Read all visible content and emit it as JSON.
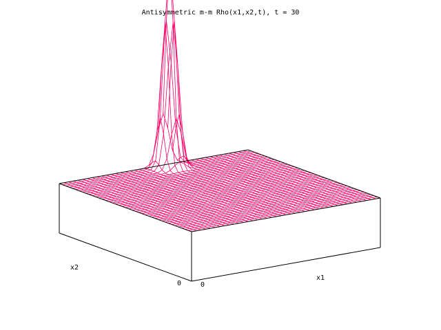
{
  "chart_data": {
    "type": "surface",
    "title": "Antisymmetric m-m Rho(x1,x2,t), t = 30",
    "xlabel": "x1",
    "ylabel": "x2",
    "x_origin_label": "0",
    "y_origin_label": "0",
    "grid_n": 40,
    "surface": {
      "kind": "single peak on flat plane",
      "baseline": 0,
      "peak_value": 1,
      "peak_location": {
        "x1": 0.55,
        "x2": 0.95
      },
      "peak_width": 0.03
    },
    "colors": {
      "mesh": "#ff0066",
      "axes": "#000000",
      "background": "#ffffff"
    }
  }
}
